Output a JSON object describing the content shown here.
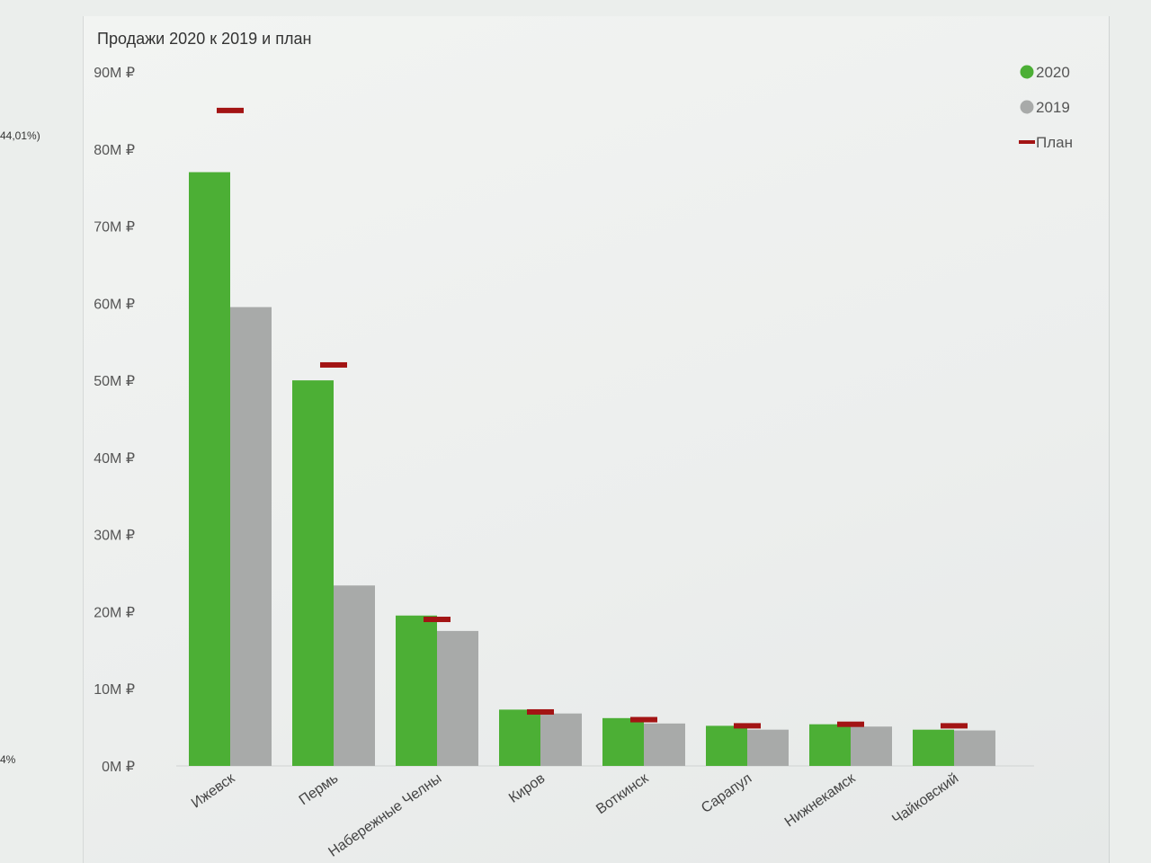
{
  "edge_fragments": {
    "top": "44,01%)",
    "bottom": "4%"
  },
  "chart_data": {
    "type": "bar",
    "title": "Продажи 2020 к 2019 и план",
    "xlabel": "",
    "ylabel": "",
    "ylim": [
      0,
      90
    ],
    "y_ticks": [
      "0M ₽",
      "10M ₽",
      "20M ₽",
      "30M ₽",
      "40M ₽",
      "50M ₽",
      "60M ₽",
      "70M ₽",
      "80M ₽",
      "90M ₽"
    ],
    "categories": [
      "Ижевск",
      "Пермь",
      "Набережные Челны",
      "Киров",
      "Воткинск",
      "Сарапул",
      "Нижнекамск",
      "Чайковский"
    ],
    "series": [
      {
        "name": "2020",
        "kind": "bar",
        "color": "#4caf35",
        "values": [
          77,
          50,
          19.5,
          7.3,
          6.2,
          5.2,
          5.4,
          4.7
        ]
      },
      {
        "name": "2019",
        "kind": "bar",
        "color": "#a8aaa9",
        "values": [
          59.5,
          23.4,
          17.5,
          6.8,
          5.5,
          4.7,
          5.1,
          4.6
        ]
      },
      {
        "name": "План",
        "kind": "marker",
        "color": "#a31414",
        "values": [
          85,
          52,
          19,
          7,
          6,
          5.2,
          5.4,
          5.2
        ]
      }
    ],
    "legend_position": "top-right",
    "grid": false
  }
}
